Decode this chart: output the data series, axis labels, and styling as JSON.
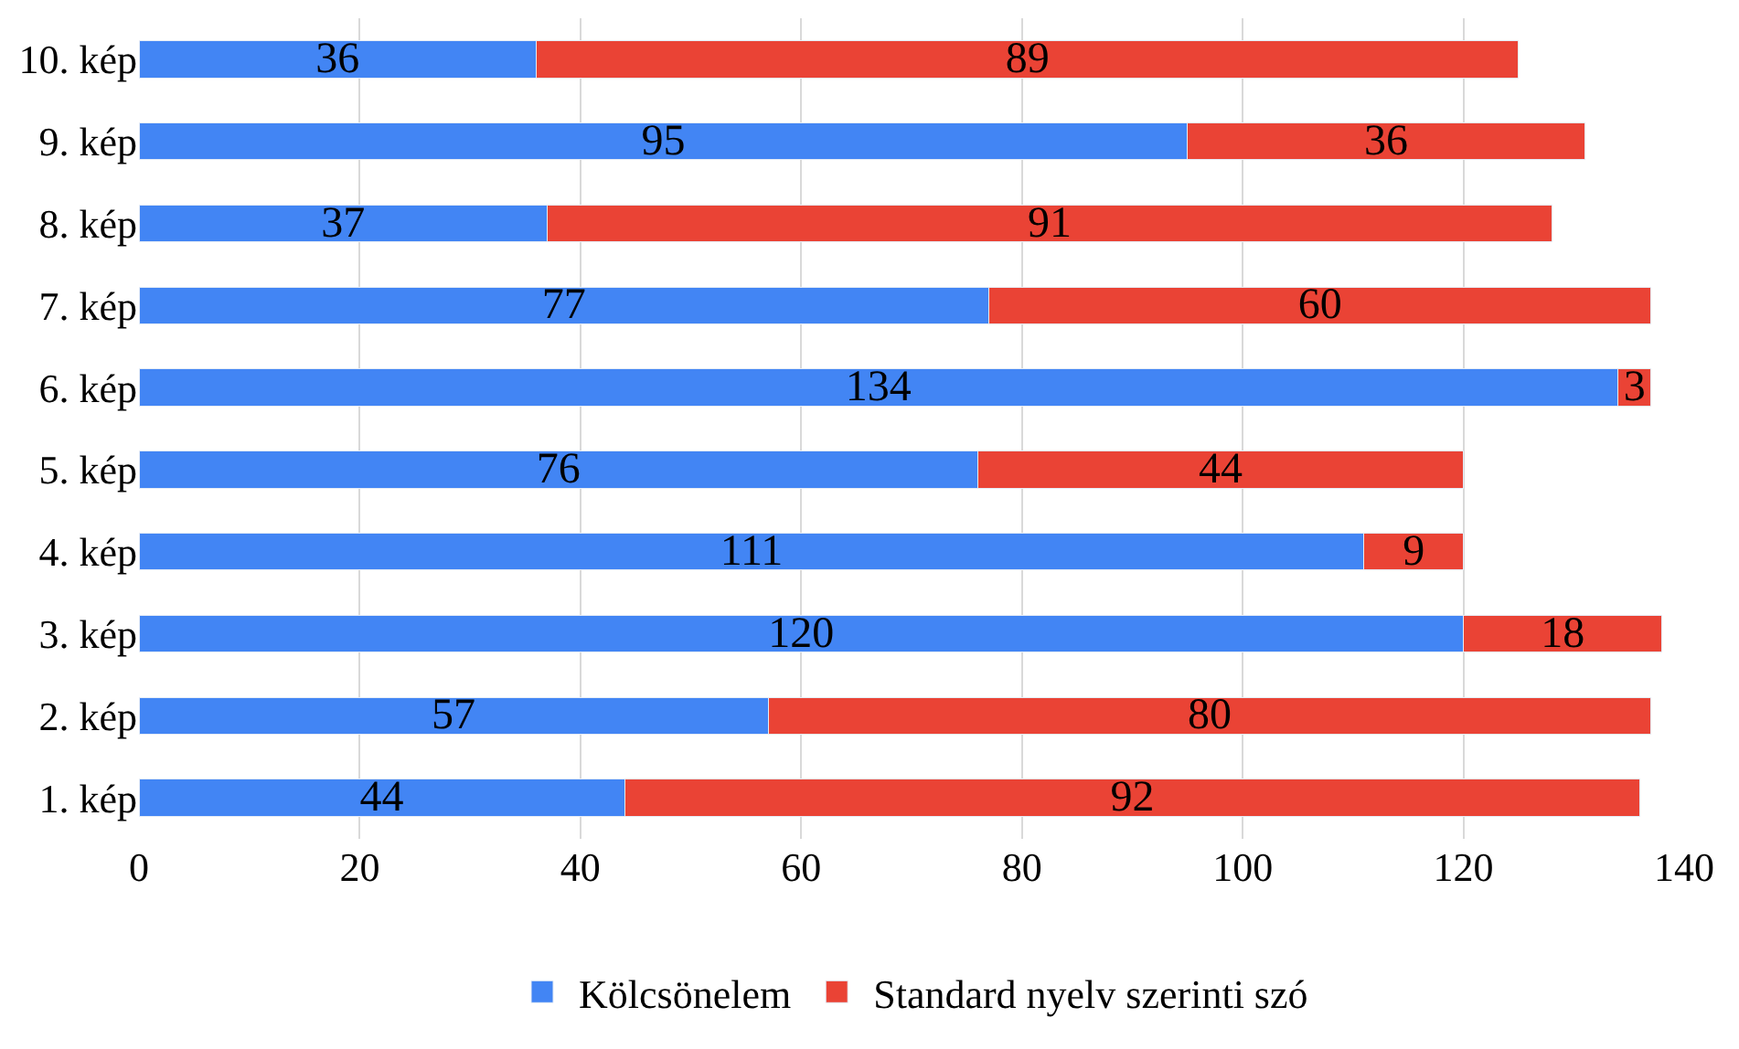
{
  "chart_data": {
    "type": "bar",
    "orientation": "horizontal",
    "stacked": true,
    "categories": [
      "10. kép",
      "9. kép",
      "8. kép",
      "7. kép",
      "6. kép",
      "5. kép",
      "4. kép",
      "3. kép",
      "2. kép",
      "1. kép"
    ],
    "series": [
      {
        "name": "Kölcsönelem",
        "color": "#4285f4",
        "values": [
          36,
          95,
          37,
          77,
          134,
          76,
          111,
          120,
          57,
          44
        ]
      },
      {
        "name": "Standard nyelv szerinti szó",
        "color": "#ea4335",
        "values": [
          89,
          36,
          91,
          60,
          3,
          44,
          9,
          18,
          80,
          92
        ]
      }
    ],
    "xlim": [
      0,
      140
    ],
    "xticks": [
      0,
      20,
      40,
      60,
      80,
      100,
      120,
      140
    ],
    "grid": "x",
    "legend": "bottom",
    "data_labels": true
  }
}
